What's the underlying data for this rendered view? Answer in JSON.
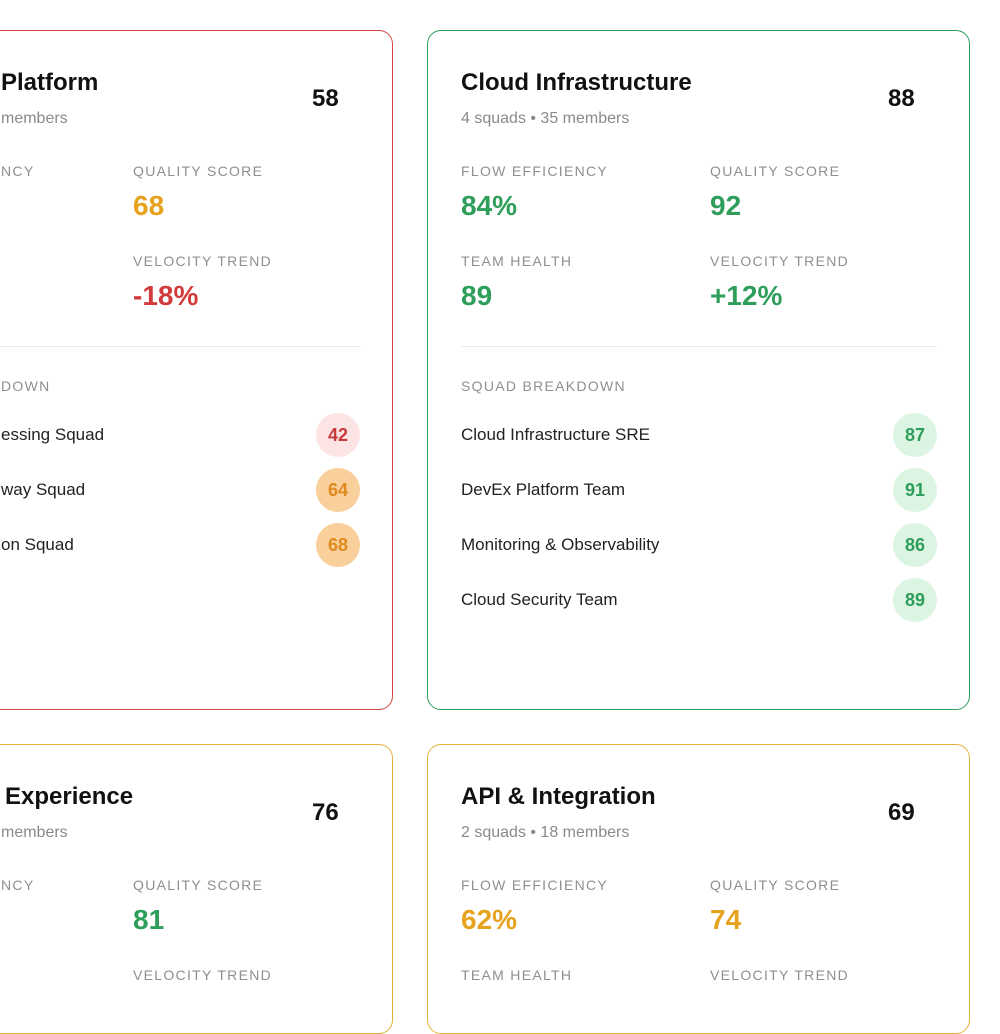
{
  "cards": [
    {
      "title": "Platform",
      "subtitle": "members",
      "score": "58",
      "metrics": [
        {
          "label": "NCY",
          "value": ""
        },
        {
          "label": "QUALITY SCORE",
          "value": "68"
        },
        {
          "label": "VELOCITY TREND",
          "value": "-18%"
        }
      ],
      "breakdown_label": "DOWN",
      "squads": [
        {
          "name": "essing Squad",
          "score": "42"
        },
        {
          "name": "way Squad",
          "score": "64"
        },
        {
          "name": "on Squad",
          "score": "68"
        }
      ]
    },
    {
      "title": "Cloud Infrastructure",
      "subtitle": "4 squads • 35 members",
      "score": "88",
      "metrics": [
        {
          "label": "FLOW EFFICIENCY",
          "value": "84%"
        },
        {
          "label": "QUALITY SCORE",
          "value": "92"
        },
        {
          "label": "TEAM HEALTH",
          "value": "89"
        },
        {
          "label": "VELOCITY TREND",
          "value": "+12%"
        }
      ],
      "breakdown_label": "SQUAD BREAKDOWN",
      "squads": [
        {
          "name": "Cloud Infrastructure SRE",
          "score": "87"
        },
        {
          "name": "DevEx Platform Team",
          "score": "91"
        },
        {
          "name": "Monitoring & Observability",
          "score": "86"
        },
        {
          "name": "Cloud Security Team",
          "score": "89"
        }
      ]
    },
    {
      "title": "Experience",
      "subtitle": "members",
      "score": "76",
      "metrics": [
        {
          "label": "NCY",
          "value": ""
        },
        {
          "label": "QUALITY SCORE",
          "value": "81"
        },
        {
          "label": "VELOCITY TREND",
          "value": ""
        }
      ]
    },
    {
      "title": "API & Integration",
      "subtitle": "2 squads • 18 members",
      "score": "69",
      "metrics": [
        {
          "label": "FLOW EFFICIENCY",
          "value": "62%"
        },
        {
          "label": "QUALITY SCORE",
          "value": "74"
        },
        {
          "label": "TEAM HEALTH",
          "value": ""
        },
        {
          "label": "VELOCITY TREND",
          "value": ""
        }
      ]
    }
  ],
  "colors": {
    "good": "#2e9e5a",
    "warn": "#e7a21d",
    "bad": "#d13b3b"
  }
}
